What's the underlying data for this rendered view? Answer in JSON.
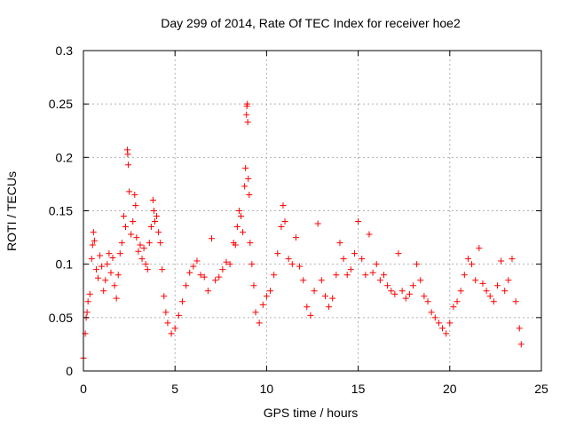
{
  "chart_data": {
    "type": "scatter",
    "title": "Day 299 of 2014, Rate Of TEC Index for receiver hoe2",
    "xlabel": "GPS time / hours",
    "ylabel": "ROTI / TECUs",
    "xlim": [
      0,
      25
    ],
    "ylim": [
      0,
      0.3
    ],
    "x_ticks": [
      "0",
      "5",
      "10",
      "15",
      "20",
      "25"
    ],
    "y_ticks": [
      "0",
      "0.05",
      "0.1",
      "0.15",
      "0.2",
      "0.25",
      "0.3"
    ],
    "grid": true,
    "marker": "+",
    "color": "#ff0000",
    "series": [
      {
        "points": [
          [
            0.0,
            0.012
          ],
          [
            0.1,
            0.035
          ],
          [
            0.15,
            0.05
          ],
          [
            0.2,
            0.055
          ],
          [
            0.25,
            0.065
          ],
          [
            0.35,
            0.072
          ],
          [
            0.45,
            0.105
          ],
          [
            0.5,
            0.118
          ],
          [
            0.55,
            0.13
          ],
          [
            0.6,
            0.122
          ],
          [
            0.7,
            0.095
          ],
          [
            0.8,
            0.087
          ],
          [
            0.9,
            0.108
          ],
          [
            1.0,
            0.098
          ],
          [
            1.1,
            0.075
          ],
          [
            1.2,
            0.085
          ],
          [
            1.3,
            0.1
          ],
          [
            1.4,
            0.11
          ],
          [
            1.5,
            0.092
          ],
          [
            1.6,
            0.106
          ],
          [
            1.7,
            0.08
          ],
          [
            1.8,
            0.068
          ],
          [
            1.9,
            0.09
          ],
          [
            2.0,
            0.11
          ],
          [
            2.1,
            0.12
          ],
          [
            2.2,
            0.145
          ],
          [
            2.3,
            0.135
          ],
          [
            2.4,
            0.207
          ],
          [
            2.42,
            0.203
          ],
          [
            2.45,
            0.193
          ],
          [
            2.5,
            0.168
          ],
          [
            2.6,
            0.128
          ],
          [
            2.7,
            0.14
          ],
          [
            2.8,
            0.165
          ],
          [
            2.85,
            0.155
          ],
          [
            2.9,
            0.125
          ],
          [
            3.0,
            0.112
          ],
          [
            3.1,
            0.118
          ],
          [
            3.2,
            0.105
          ],
          [
            3.3,
            0.115
          ],
          [
            3.4,
            0.1
          ],
          [
            3.5,
            0.095
          ],
          [
            3.6,
            0.12
          ],
          [
            3.7,
            0.135
          ],
          [
            3.8,
            0.16
          ],
          [
            3.85,
            0.15
          ],
          [
            3.9,
            0.14
          ],
          [
            4.0,
            0.145
          ],
          [
            4.1,
            0.13
          ],
          [
            4.2,
            0.12
          ],
          [
            4.3,
            0.095
          ],
          [
            4.4,
            0.07
          ],
          [
            4.5,
            0.055
          ],
          [
            4.6,
            0.045
          ],
          [
            4.8,
            0.035
          ],
          [
            5.0,
            0.04
          ],
          [
            5.2,
            0.052
          ],
          [
            5.4,
            0.065
          ],
          [
            5.6,
            0.08
          ],
          [
            5.8,
            0.092
          ],
          [
            6.0,
            0.098
          ],
          [
            6.2,
            0.103
          ],
          [
            6.4,
            0.09
          ],
          [
            6.6,
            0.088
          ],
          [
            6.8,
            0.075
          ],
          [
            7.0,
            0.124
          ],
          [
            7.2,
            0.085
          ],
          [
            7.4,
            0.088
          ],
          [
            7.6,
            0.095
          ],
          [
            7.8,
            0.102
          ],
          [
            8.0,
            0.1
          ],
          [
            8.2,
            0.12
          ],
          [
            8.3,
            0.118
          ],
          [
            8.4,
            0.135
          ],
          [
            8.5,
            0.15
          ],
          [
            8.6,
            0.145
          ],
          [
            8.7,
            0.13
          ],
          [
            8.8,
            0.173
          ],
          [
            8.85,
            0.19
          ],
          [
            8.9,
            0.24
          ],
          [
            8.92,
            0.248
          ],
          [
            8.95,
            0.25
          ],
          [
            8.97,
            0.233
          ],
          [
            9.0,
            0.18
          ],
          [
            9.05,
            0.165
          ],
          [
            9.1,
            0.12
          ],
          [
            9.2,
            0.1
          ],
          [
            9.3,
            0.08
          ],
          [
            9.4,
            0.055
          ],
          [
            9.6,
            0.045
          ],
          [
            9.8,
            0.062
          ],
          [
            10.0,
            0.07
          ],
          [
            10.2,
            0.075
          ],
          [
            10.4,
            0.09
          ],
          [
            10.6,
            0.11
          ],
          [
            10.8,
            0.135
          ],
          [
            10.9,
            0.155
          ],
          [
            11.0,
            0.14
          ],
          [
            11.2,
            0.105
          ],
          [
            11.4,
            0.1
          ],
          [
            11.6,
            0.125
          ],
          [
            11.8,
            0.098
          ],
          [
            12.0,
            0.085
          ],
          [
            12.2,
            0.06
          ],
          [
            12.4,
            0.052
          ],
          [
            12.6,
            0.075
          ],
          [
            12.8,
            0.138
          ],
          [
            13.0,
            0.085
          ],
          [
            13.2,
            0.07
          ],
          [
            13.4,
            0.06
          ],
          [
            13.6,
            0.068
          ],
          [
            13.8,
            0.09
          ],
          [
            14.0,
            0.12
          ],
          [
            14.2,
            0.105
          ],
          [
            14.4,
            0.09
          ],
          [
            14.6,
            0.095
          ],
          [
            14.8,
            0.11
          ],
          [
            15.0,
            0.14
          ],
          [
            15.2,
            0.105
          ],
          [
            15.4,
            0.09
          ],
          [
            15.6,
            0.128
          ],
          [
            15.8,
            0.092
          ],
          [
            16.0,
            0.1
          ],
          [
            16.2,
            0.085
          ],
          [
            16.4,
            0.09
          ],
          [
            16.6,
            0.08
          ],
          [
            16.8,
            0.075
          ],
          [
            17.0,
            0.072
          ],
          [
            17.2,
            0.11
          ],
          [
            17.4,
            0.075
          ],
          [
            17.6,
            0.068
          ],
          [
            17.8,
            0.072
          ],
          [
            18.0,
            0.08
          ],
          [
            18.2,
            0.1
          ],
          [
            18.4,
            0.085
          ],
          [
            18.6,
            0.07
          ],
          [
            18.8,
            0.065
          ],
          [
            19.0,
            0.055
          ],
          [
            19.2,
            0.05
          ],
          [
            19.4,
            0.045
          ],
          [
            19.6,
            0.04
          ],
          [
            19.8,
            0.035
          ],
          [
            20.0,
            0.045
          ],
          [
            20.2,
            0.06
          ],
          [
            20.4,
            0.065
          ],
          [
            20.6,
            0.075
          ],
          [
            20.8,
            0.09
          ],
          [
            21.0,
            0.105
          ],
          [
            21.2,
            0.1
          ],
          [
            21.4,
            0.085
          ],
          [
            21.6,
            0.115
          ],
          [
            21.8,
            0.082
          ],
          [
            22.0,
            0.075
          ],
          [
            22.2,
            0.07
          ],
          [
            22.4,
            0.065
          ],
          [
            22.6,
            0.08
          ],
          [
            22.8,
            0.103
          ],
          [
            23.0,
            0.075
          ],
          [
            23.2,
            0.085
          ],
          [
            23.4,
            0.105
          ],
          [
            23.6,
            0.065
          ],
          [
            23.8,
            0.04
          ],
          [
            23.9,
            0.025
          ]
        ]
      }
    ]
  }
}
